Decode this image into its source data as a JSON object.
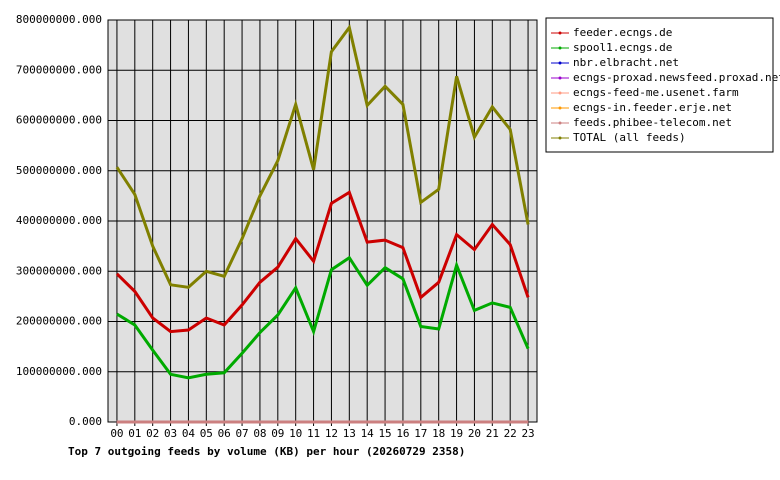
{
  "chart_data": {
    "type": "line",
    "title": "Top 7 outgoing feeds by volume (KB) per hour (20260729 2358)",
    "categories": [
      "00",
      "01",
      "02",
      "03",
      "04",
      "05",
      "06",
      "07",
      "08",
      "09",
      "10",
      "11",
      "12",
      "13",
      "14",
      "15",
      "16",
      "17",
      "18",
      "19",
      "20",
      "21",
      "22",
      "23"
    ],
    "series": [
      {
        "name": "feeder.ecngs.de",
        "color": "#cc0000",
        "values": [
          295000000,
          260000000,
          207000000,
          180000000,
          183000000,
          207000000,
          193000000,
          233000000,
          278000000,
          308000000,
          365000000,
          320000000,
          435000000,
          457000000,
          358000000,
          362000000,
          347000000,
          248000000,
          278000000,
          373000000,
          343000000,
          393000000,
          353000000,
          248000000
        ]
      },
      {
        "name": "spool1.ecngs.de",
        "color": "#00aa00",
        "values": [
          215000000,
          193000000,
          143000000,
          95000000,
          88000000,
          95000000,
          98000000,
          137000000,
          178000000,
          213000000,
          267000000,
          180000000,
          303000000,
          327000000,
          272000000,
          307000000,
          285000000,
          190000000,
          185000000,
          312000000,
          222000000,
          237000000,
          228000000,
          146000000
        ]
      },
      {
        "name": "nbr.elbracht.net",
        "color": "#0000cc",
        "values": [
          0,
          0,
          0,
          0,
          0,
          0,
          0,
          0,
          0,
          0,
          0,
          0,
          0,
          0,
          0,
          0,
          0,
          0,
          0,
          0,
          0,
          0,
          0,
          0
        ]
      },
      {
        "name": "ecngs-proxad.newsfeed.proxad.net",
        "color": "#9900cc",
        "values": [
          0,
          0,
          0,
          0,
          0,
          0,
          0,
          0,
          0,
          0,
          0,
          0,
          0,
          0,
          0,
          0,
          0,
          0,
          0,
          0,
          0,
          0,
          0,
          0
        ]
      },
      {
        "name": "ecngs-feed-me.usenet.farm",
        "color": "#ff9980",
        "values": [
          0,
          0,
          0,
          0,
          0,
          0,
          0,
          0,
          0,
          0,
          0,
          0,
          0,
          0,
          0,
          0,
          0,
          0,
          0,
          0,
          0,
          0,
          0,
          0
        ]
      },
      {
        "name": "ecngs-in.feeder.erje.net",
        "color": "#ff9900",
        "values": [
          0,
          0,
          0,
          0,
          0,
          0,
          0,
          0,
          0,
          0,
          0,
          0,
          0,
          0,
          0,
          0,
          0,
          0,
          0,
          0,
          0,
          0,
          0,
          0
        ]
      },
      {
        "name": "feeds.phibee-telecom.net",
        "color": "#cc8080",
        "values": [
          0,
          0,
          0,
          0,
          0,
          0,
          0,
          0,
          0,
          0,
          0,
          0,
          0,
          0,
          0,
          0,
          0,
          0,
          0,
          0,
          0,
          0,
          0,
          0
        ]
      },
      {
        "name": "TOTAL (all feeds)",
        "color": "#808000",
        "values": [
          507000000,
          453000000,
          350000000,
          273000000,
          268000000,
          300000000,
          290000000,
          365000000,
          450000000,
          520000000,
          632000000,
          502000000,
          737000000,
          785000000,
          630000000,
          668000000,
          632000000,
          437000000,
          463000000,
          688000000,
          567000000,
          627000000,
          582000000,
          393000000
        ]
      }
    ],
    "ylim": [
      0,
      800000000
    ],
    "yticks": [
      {
        "value": 0,
        "label": "0.000"
      },
      {
        "value": 100000000,
        "label": "100000000.000"
      },
      {
        "value": 200000000,
        "label": "200000000.000"
      },
      {
        "value": 300000000,
        "label": "300000000.000"
      },
      {
        "value": 400000000,
        "label": "400000000.000"
      },
      {
        "value": 500000000,
        "label": "500000000.000"
      },
      {
        "value": 600000000,
        "label": "600000000.000"
      },
      {
        "value": 700000000,
        "label": "700000000.000"
      },
      {
        "value": 800000000,
        "label": "800000000.000"
      }
    ],
    "grid": true
  }
}
